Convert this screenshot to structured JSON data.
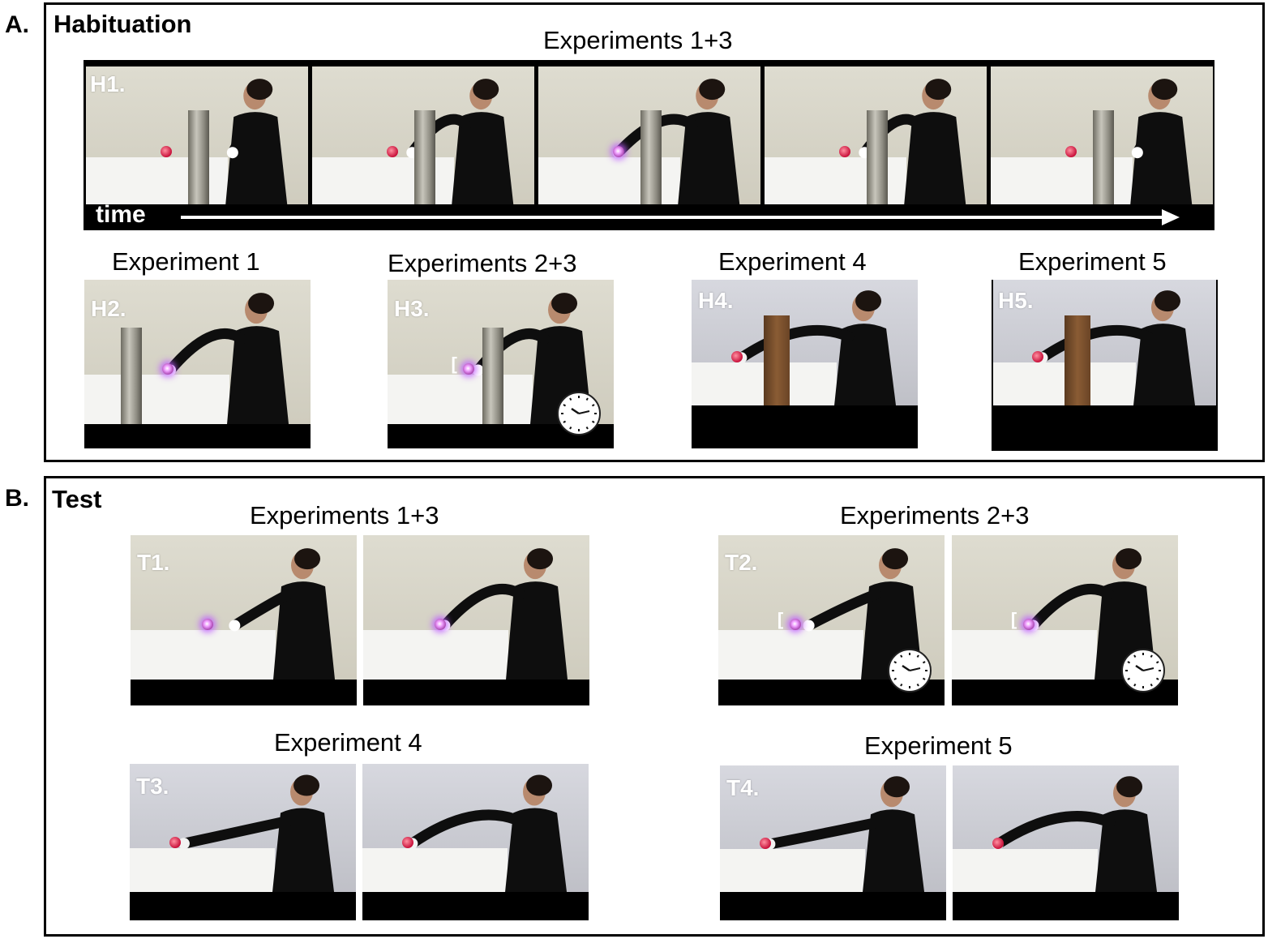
{
  "panel_a": {
    "letter": "A.",
    "title": "Habituation",
    "h1_heading": "Experiments 1+3",
    "time_label": "time",
    "frames": [
      {
        "label": "H1.",
        "experiment": "Experiment 1"
      },
      {
        "label": "H2.",
        "experiment": "Experiment 1"
      },
      {
        "label": "H3.",
        "experiment": "Experiments 2+3"
      },
      {
        "label": "H4.",
        "experiment": "Experiment 4"
      },
      {
        "label": "H5.",
        "experiment": "Experiment 5"
      }
    ]
  },
  "panel_b": {
    "letter": "B.",
    "title": "Test",
    "groups": [
      {
        "label": "T1.",
        "experiment": "Experiments 1+3"
      },
      {
        "label": "T2.",
        "experiment": "Experiments 2+3"
      },
      {
        "label": "T3.",
        "experiment": "Experiment 4"
      },
      {
        "label": "T4.",
        "experiment": "Experiment 5"
      }
    ]
  },
  "colors": {
    "border": "#000000",
    "wall": "#d8d6c8",
    "wall_gray": "#c9cad0",
    "label_white": "#ffffff"
  }
}
